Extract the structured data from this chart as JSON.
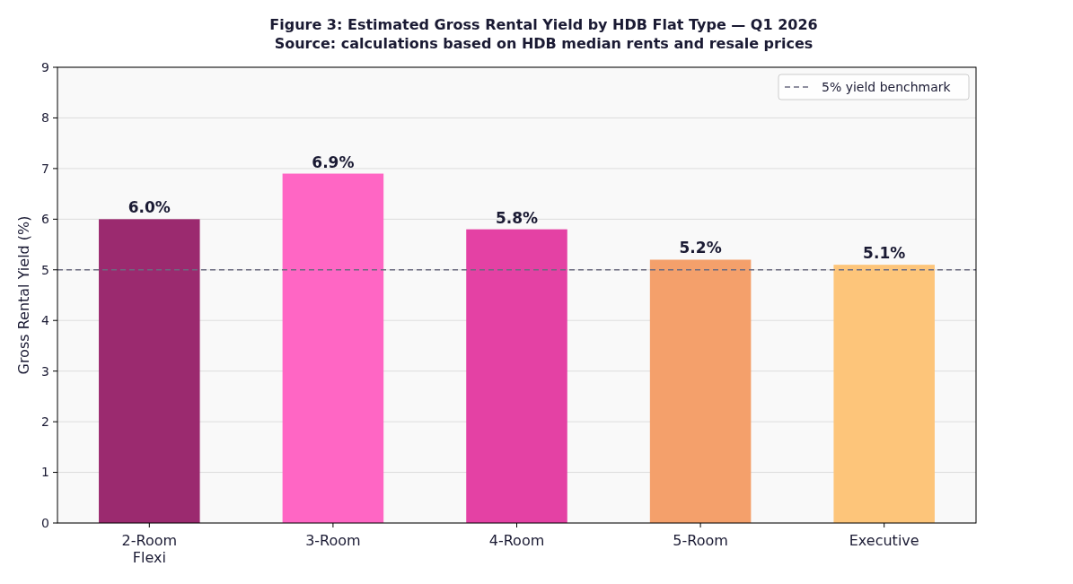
{
  "chart_data": {
    "type": "bar",
    "title": "Figure 3: Estimated Gross Rental Yield by HDB Flat Type — Q1 2026",
    "subtitle": "Source: calculations based on HDB median rents and resale prices",
    "ylabel": "Gross Rental Yield (%)",
    "categories": [
      "2-Room Flexi",
      "3-Room",
      "4-Room",
      "5-Room",
      "Executive"
    ],
    "values": [
      6.0,
      6.9,
      5.8,
      5.2,
      5.1
    ],
    "colors": [
      "#9b2a6f",
      "#ff66c4",
      "#e441a4",
      "#f4a06b",
      "#fdc57a"
    ],
    "value_labels": [
      "6.0%",
      "6.9%",
      "5.8%",
      "5.2%",
      "5.1%"
    ],
    "ylim": [
      0,
      9
    ],
    "yticks": [
      0,
      1,
      2,
      3,
      4,
      5,
      6,
      7,
      8,
      9
    ],
    "grid": "y",
    "legend": "top right",
    "ref_lines": [
      {
        "axis": "y",
        "value": 5,
        "label": "5% yield benchmark",
        "color": "#6b6b80",
        "line_style": "dashed"
      }
    ]
  }
}
